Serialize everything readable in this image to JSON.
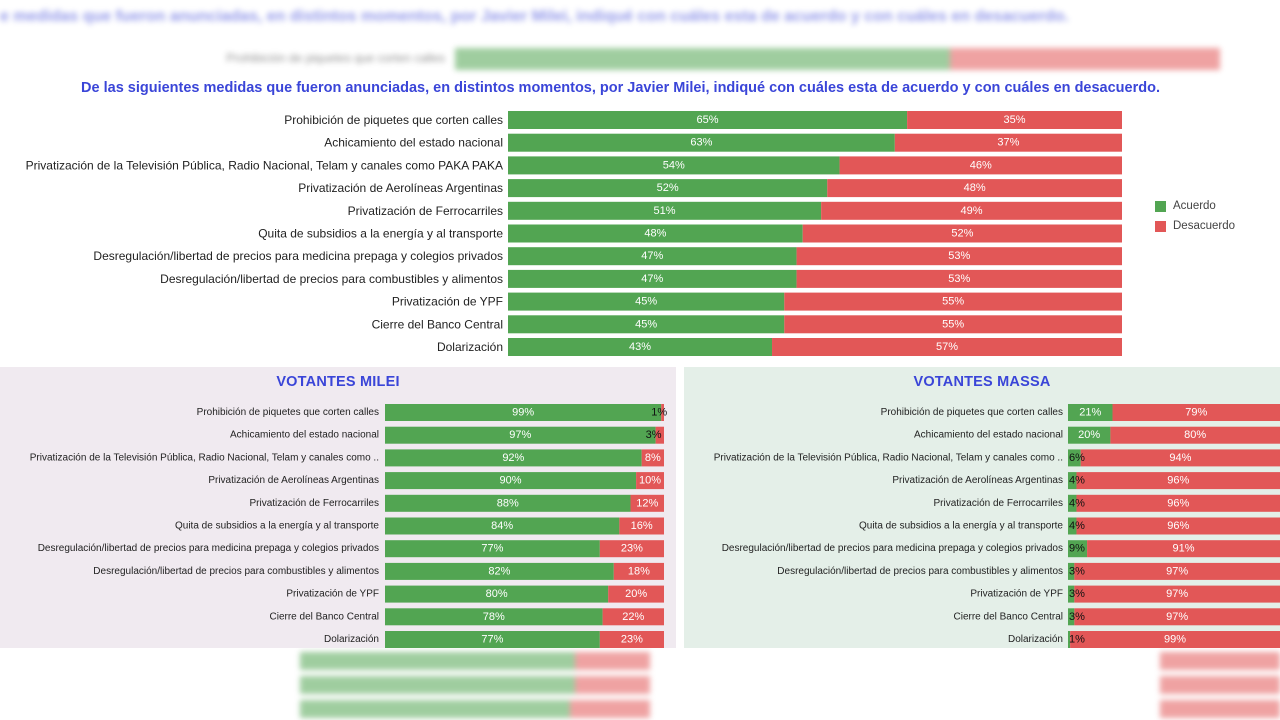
{
  "background_ghost": {
    "title": "e medidas que fueron anunciadas, en distintos momentos, por Javier Milei, indiqué con cuáles esta de acuerdo y con cuáles en desacuerdo.",
    "row_label": "Prohibición de piquetes que corten calles"
  },
  "colors": {
    "acuerdo": "#52a552",
    "desacuerdo": "#e25757",
    "title": "#3a45d8",
    "milei_panel": "#f0eaf0",
    "massa_panel": "#e4efe8"
  },
  "legend": {
    "acuerdo": "Acuerdo",
    "desacuerdo": "Desacuerdo"
  },
  "chart_data": [
    {
      "type": "bar",
      "stacked": true,
      "orientation": "horizontal",
      "title": "De las siguientes medidas que fueron anunciadas, en distintos momentos, por Javier Milei, indiqué con cuáles esta de acuerdo y con cuáles en desacuerdo.",
      "categories": [
        "Prohibición de piquetes que corten calles",
        "Achicamiento del estado nacional",
        "Privatización de la Televisión Pública, Radio Nacional, Telam y canales como PAKA PAKA",
        "Privatización de Aerolíneas Argentinas",
        "Privatización de Ferrocarriles",
        "Quita de subsidios a la energía y al transporte",
        "Desregulación/libertad de precios para medicina prepaga y colegios privados",
        "Desregulación/libertad de precios para combustibles y alimentos",
        "Privatización de YPF",
        "Cierre del Banco Central",
        "Dolarización"
      ],
      "series": [
        {
          "name": "Acuerdo",
          "values": [
            65,
            63,
            54,
            52,
            51,
            48,
            47,
            47,
            45,
            45,
            43
          ]
        },
        {
          "name": "Desacuerdo",
          "values": [
            35,
            37,
            46,
            48,
            49,
            52,
            53,
            53,
            55,
            55,
            57
          ]
        }
      ],
      "xlim": [
        0,
        100
      ],
      "legend": "right"
    },
    {
      "type": "bar",
      "stacked": true,
      "orientation": "horizontal",
      "title": "VOTANTES MILEI",
      "categories": [
        "Prohibición de piquetes que corten calles",
        "Achicamiento del estado nacional",
        "Privatización de la Televisión Pública, Radio Nacional, Telam y canales como ..",
        "Privatización de Aerolíneas Argentinas",
        "Privatización de Ferrocarriles",
        "Quita de subsidios a la energía y al transporte",
        "Desregulación/libertad de precios para medicina prepaga y colegios privados",
        "Desregulación/libertad de precios para combustibles y alimentos",
        "Privatización de YPF",
        "Cierre del Banco Central",
        "Dolarización"
      ],
      "series": [
        {
          "name": "Acuerdo",
          "values": [
            99,
            97,
            92,
            90,
            88,
            84,
            77,
            82,
            80,
            78,
            77
          ]
        },
        {
          "name": "Desacuerdo",
          "values": [
            1,
            3,
            8,
            10,
            12,
            16,
            23,
            18,
            20,
            22,
            23
          ]
        }
      ],
      "xlim": [
        0,
        100
      ]
    },
    {
      "type": "bar",
      "stacked": true,
      "orientation": "horizontal",
      "title": "VOTANTES MASSA",
      "categories": [
        "Prohibición de piquetes que corten calles",
        "Achicamiento del estado nacional",
        "Privatización de la Televisión Pública, Radio Nacional, Telam y canales como ..",
        "Privatización de Aerolíneas Argentinas",
        "Privatización de Ferrocarriles",
        "Quita de subsidios a la energía y al transporte",
        "Desregulación/libertad de precios para medicina prepaga y colegios privados",
        "Desregulación/libertad de precios para combustibles y alimentos",
        "Privatización de YPF",
        "Cierre del Banco Central",
        "Dolarización"
      ],
      "series": [
        {
          "name": "Acuerdo",
          "values": [
            21,
            20,
            6,
            4,
            4,
            4,
            9,
            3,
            3,
            3,
            1
          ]
        },
        {
          "name": "Desacuerdo",
          "values": [
            79,
            80,
            94,
            96,
            96,
            96,
            91,
            97,
            97,
            97,
            99
          ]
        }
      ],
      "xlim": [
        0,
        100
      ]
    }
  ]
}
